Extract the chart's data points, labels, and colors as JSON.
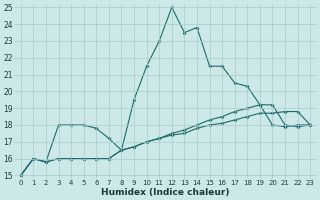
{
  "xlabel": "Humidex (Indice chaleur)",
  "bg_color": "#cce8e8",
  "grid_color": "#aacccc",
  "line_color": "#1a6b6b",
  "xlim": [
    -0.5,
    23.5
  ],
  "ylim": [
    14.8,
    25.2
  ],
  "xticks": [
    0,
    1,
    2,
    3,
    4,
    5,
    6,
    7,
    8,
    9,
    10,
    11,
    12,
    13,
    14,
    15,
    16,
    17,
    18,
    19,
    20,
    21,
    22,
    23
  ],
  "yticks": [
    15,
    16,
    17,
    18,
    19,
    20,
    21,
    22,
    23,
    24,
    25
  ],
  "line1_x": [
    0,
    1,
    2,
    3,
    4,
    5,
    6,
    7,
    8,
    9,
    10,
    11,
    12,
    13,
    14,
    15,
    16,
    17,
    18,
    19,
    20,
    21,
    22,
    23
  ],
  "line1_y": [
    15.0,
    16.0,
    15.8,
    18.0,
    18.0,
    18.0,
    17.8,
    17.2,
    16.5,
    19.5,
    21.5,
    23.0,
    25.0,
    23.5,
    23.8,
    21.5,
    21.5,
    20.5,
    20.3,
    19.2,
    18.0,
    17.9,
    18.0,
    18.0
  ],
  "line2_x": [
    0,
    1,
    2,
    3,
    4,
    5,
    6,
    7,
    8,
    9,
    10,
    11,
    12,
    13,
    14,
    15,
    16,
    17,
    18,
    19,
    20,
    21,
    22,
    23
  ],
  "line2_y": [
    15.0,
    16.0,
    15.8,
    16.0,
    16.0,
    16.0,
    16.0,
    16.0,
    16.5,
    16.7,
    17.0,
    17.2,
    17.4,
    17.5,
    17.8,
    18.0,
    18.1,
    18.3,
    18.5,
    18.7,
    18.7,
    18.8,
    18.8,
    18.0
  ],
  "line3_x": [
    0,
    1,
    2,
    3,
    4,
    5,
    6,
    7,
    8,
    9,
    10,
    11,
    12,
    13,
    14,
    15,
    16,
    17,
    18,
    19,
    20,
    21,
    22,
    23
  ],
  "line3_y": [
    15.0,
    16.0,
    15.8,
    16.0,
    16.0,
    16.0,
    16.0,
    16.0,
    16.5,
    16.7,
    17.0,
    17.2,
    17.5,
    17.7,
    18.0,
    18.3,
    18.5,
    18.8,
    19.0,
    19.2,
    19.2,
    18.0,
    17.9,
    18.0
  ]
}
